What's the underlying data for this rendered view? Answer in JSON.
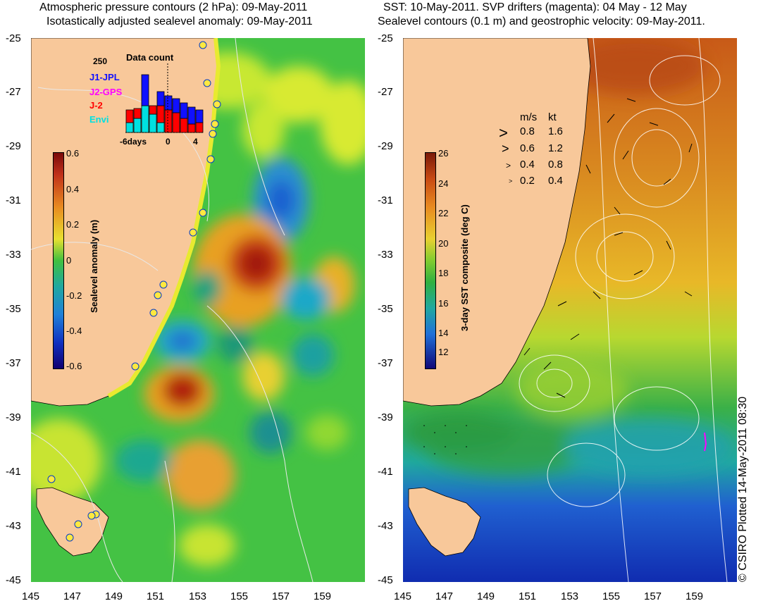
{
  "left_panel": {
    "title_line1": "Atmospheric pressure contours (2 hPa): 09-May-2011",
    "title_line2": "Isotastically adjusted sealevel anomaly: 09-May-2011",
    "colorbar": {
      "label": "Sealevel anomaly (m)",
      "ticks": [
        "0.6",
        "0.4",
        "0.2",
        "0",
        "-0.2",
        "-0.4",
        "-0.6"
      ]
    },
    "inset": {
      "title": "Data count",
      "ymax_label": "250",
      "legend": [
        {
          "label": "J1-JPL",
          "color": "#1010ff"
        },
        {
          "label": "J2-GPS",
          "color": "#ff00ff"
        },
        {
          "label": "J-2",
          "color": "#ff0000"
        },
        {
          "label": "Envi",
          "color": "#00e0e0"
        }
      ],
      "x_ticks": [
        "-6days",
        "0",
        "4"
      ]
    },
    "y_ticks": [
      "-25",
      "-27",
      "-29",
      "-31",
      "-33",
      "-35",
      "-37",
      "-39",
      "-41",
      "-43",
      "-45"
    ],
    "x_ticks": [
      "145",
      "147",
      "149",
      "151",
      "153",
      "155",
      "157",
      "159"
    ]
  },
  "right_panel": {
    "title_line1": "SST: 10-May-2011. SVP drifters (magenta): 04 May - 12 May",
    "title_line2": "Sealevel contours (0.1 m) and geostrophic velocity: 09-May-2011.",
    "colorbar": {
      "label": "3-day SST composite (deg C)",
      "ticks": [
        "26",
        "24",
        "22",
        "20",
        "18",
        "16",
        "14",
        "12"
      ]
    },
    "velocity_legend": {
      "header_ms": "m/s",
      "header_kt": "kt",
      "rows": [
        {
          "ms": "0.8",
          "kt": "1.6"
        },
        {
          "ms": "0.6",
          "kt": "1.2"
        },
        {
          "ms": "0.4",
          "kt": "0.8"
        },
        {
          "ms": "0.2",
          "kt": "0.4"
        }
      ]
    },
    "y_ticks": [
      "-25",
      "-27",
      "-29",
      "-31",
      "-33",
      "-35",
      "-37",
      "-39",
      "-41",
      "-43",
      "-45"
    ],
    "x_ticks": [
      "145",
      "147",
      "149",
      "151",
      "153",
      "155",
      "157",
      "159"
    ]
  },
  "credit": "© CSIRO Plotted 14-May-2011 08:30",
  "colors": {
    "land": "#f8c89a",
    "ocean_green": "#33bb33",
    "sst_orange": "#d9801e"
  }
}
